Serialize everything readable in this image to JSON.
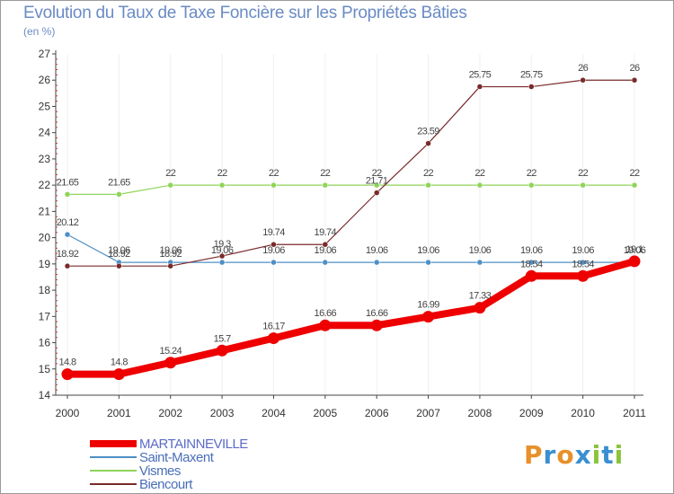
{
  "chart_data": {
    "type": "line",
    "title": "Evolution du Taux de Taxe Foncière sur les Propriétés Bâties",
    "subtitle": "(en %)",
    "xlabel": "",
    "ylabel": "",
    "ylim": [
      14,
      27
    ],
    "yticks": [
      "14",
      "15",
      "16",
      "17",
      "18",
      "19",
      "20",
      "21",
      "22",
      "23",
      "24",
      "25",
      "26",
      "27"
    ],
    "categories": [
      "2000",
      "2001",
      "2002",
      "2003",
      "2004",
      "2005",
      "2006",
      "2007",
      "2008",
      "2009",
      "2010",
      "2011"
    ],
    "series": [
      {
        "name": "MARTAINNEVILLE",
        "color": "#ee0000",
        "values": [
          14.8,
          14.8,
          15.24,
          15.7,
          16.17,
          16.66,
          16.66,
          16.99,
          17.33,
          18.54,
          18.54,
          19.1
        ],
        "labels": [
          "14.8",
          "14.8",
          "15.24",
          "15.7",
          "16.17",
          "16.66",
          "16.66",
          "16.99",
          "17.33",
          "18.54",
          "18.54",
          "19.1"
        ]
      },
      {
        "name": "Saint-Maxent",
        "color": "#4e8fc5",
        "values": [
          20.12,
          19.06,
          19.06,
          19.06,
          19.06,
          19.06,
          19.06,
          19.06,
          19.06,
          19.06,
          19.06,
          19.06
        ],
        "labels": [
          "20.12",
          "19.06",
          "19.06",
          "19.06",
          "19.06",
          "19.06",
          "19.06",
          "19.06",
          "19.06",
          "19.06",
          "19.06",
          "19.06"
        ]
      },
      {
        "name": "Vismes",
        "color": "#8fd45a",
        "values": [
          21.65,
          21.65,
          22,
          22,
          22,
          22,
          22,
          22,
          22,
          22,
          22,
          22
        ],
        "labels": [
          "21.65",
          "21.65",
          "22",
          "22",
          "22",
          "22",
          "22",
          "22",
          "22",
          "22",
          "22",
          "22"
        ]
      },
      {
        "name": "Biencourt",
        "color": "#7a2a2a",
        "values": [
          18.92,
          18.92,
          18.92,
          19.3,
          19.74,
          19.74,
          21.71,
          23.59,
          25.75,
          25.75,
          26,
          26
        ],
        "labels": [
          "18.92",
          "18.92",
          "18.92",
          "19.3",
          "19.74",
          "19.74",
          "21.71",
          "23.59",
          "25.75",
          "25.75",
          "26",
          "26"
        ]
      }
    ],
    "legend_position": "bottom-left"
  },
  "logo": {
    "text": "Proxiti"
  }
}
